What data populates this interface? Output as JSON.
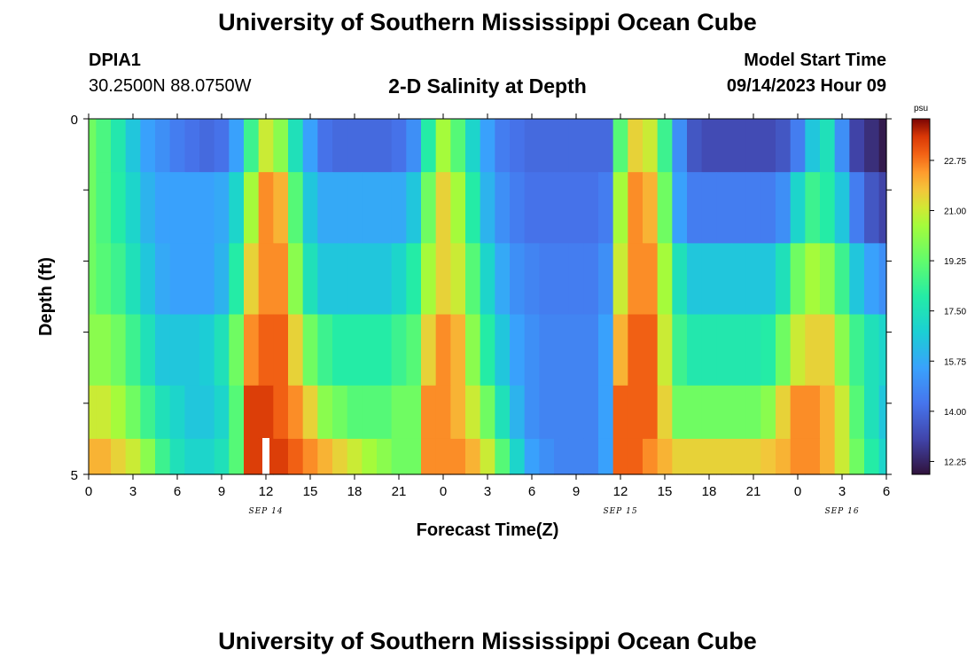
{
  "header": {
    "title": "University of Southern Mississippi Ocean Cube",
    "station_id": "DPIA1",
    "coords": "30.2500N  88.0750W",
    "subtitle": "2-D Salinity at Depth",
    "start_label": "Model Start Time",
    "start_value": "09/14/2023 Hour 09"
  },
  "footer": {
    "title": "University of Southern Mississippi Ocean Cube"
  },
  "chart_data": {
    "type": "heatmap",
    "title": "2-D Salinity at Depth",
    "xlabel": "Forecast Time(Z)",
    "ylabel": "Depth (ft)",
    "x_range_hours": [
      0,
      54
    ],
    "y_range_ft": [
      0,
      5
    ],
    "y_tick_labels": [
      {
        "v": 0,
        "label": "0"
      },
      {
        "v": 5,
        "label": "5"
      }
    ],
    "x_tick_labels": [
      {
        "h": 0,
        "label": "0"
      },
      {
        "h": 3,
        "label": "3"
      },
      {
        "h": 6,
        "label": "6"
      },
      {
        "h": 9,
        "label": "9"
      },
      {
        "h": 12,
        "label": "12"
      },
      {
        "h": 15,
        "label": "15"
      },
      {
        "h": 18,
        "label": "18"
      },
      {
        "h": 21,
        "label": "21"
      },
      {
        "h": 24,
        "label": "0"
      },
      {
        "h": 27,
        "label": "3"
      },
      {
        "h": 30,
        "label": "6"
      },
      {
        "h": 33,
        "label": "9"
      },
      {
        "h": 36,
        "label": "12"
      },
      {
        "h": 39,
        "label": "15"
      },
      {
        "h": 42,
        "label": "18"
      },
      {
        "h": 45,
        "label": "21"
      },
      {
        "h": 48,
        "label": "0"
      },
      {
        "h": 51,
        "label": "3"
      },
      {
        "h": 54,
        "label": "6"
      }
    ],
    "day_labels": [
      {
        "h": 12,
        "label": "SEP 14"
      },
      {
        "h": 36,
        "label": "SEP 15"
      },
      {
        "h": 51,
        "label": "SEP 16"
      }
    ],
    "now_marker_hour": 12,
    "depth_levels_ft": [
      0.25,
      1.25,
      2.25,
      3.25,
      4.25,
      4.75
    ],
    "colorbar": {
      "units": "psu",
      "min": 11.8,
      "max": 24.2,
      "ticks": [
        "22.75",
        "21.00",
        "19.25",
        "17.50",
        "15.75",
        "14.00",
        "12.25"
      ]
    },
    "salinity_psu": [
      [
        19.5,
        18.8,
        17.8,
        16.5,
        15.5,
        15.0,
        14.5,
        14.2,
        14.0,
        14.2,
        15.5,
        18.5,
        21.0,
        20.0,
        17.5,
        15.5,
        14.2,
        14.0,
        14.0,
        14.0,
        14.0,
        14.2,
        15.0,
        18.0,
        20.5,
        19.0,
        17.0,
        15.5,
        14.5,
        14.2,
        14.0,
        14.0,
        14.0,
        14.0,
        14.0,
        14.0,
        19.0,
        21.5,
        21.0,
        18.5,
        15.0,
        13.5,
        13.2,
        13.2,
        13.2,
        13.2,
        13.2,
        13.5,
        14.5,
        16.5,
        17.5,
        15.0,
        13.0,
        12.5,
        12.0
      ],
      [
        19.5,
        18.8,
        18.0,
        17.0,
        16.0,
        15.5,
        15.5,
        15.5,
        15.5,
        15.7,
        17.0,
        20.5,
        22.5,
        22.0,
        19.0,
        16.5,
        15.7,
        15.7,
        15.7,
        15.7,
        15.7,
        15.7,
        16.5,
        19.5,
        21.5,
        20.5,
        18.0,
        16.0,
        15.0,
        14.5,
        14.2,
        14.2,
        14.2,
        14.2,
        14.2,
        14.5,
        20.5,
        22.5,
        22.0,
        19.5,
        15.5,
        14.5,
        14.5,
        14.5,
        14.5,
        14.5,
        14.5,
        15.0,
        17.0,
        18.5,
        18.0,
        16.5,
        14.5,
        13.5,
        13.0
      ],
      [
        19.5,
        19.0,
        18.5,
        17.5,
        16.5,
        15.7,
        15.5,
        15.5,
        15.5,
        16.0,
        18.0,
        21.5,
        22.5,
        22.5,
        20.0,
        17.5,
        16.5,
        16.5,
        16.5,
        16.5,
        16.5,
        17.0,
        18.0,
        20.5,
        21.5,
        21.0,
        19.0,
        17.0,
        15.7,
        15.0,
        14.7,
        14.5,
        14.5,
        14.5,
        14.5,
        15.0,
        21.0,
        22.5,
        22.5,
        20.5,
        17.5,
        16.5,
        16.5,
        16.5,
        16.5,
        16.5,
        16.5,
        17.5,
        19.5,
        20.5,
        20.0,
        18.5,
        16.5,
        15.5,
        15.0
      ],
      [
        20.0,
        20.0,
        19.5,
        18.5,
        17.5,
        16.5,
        16.5,
        16.5,
        16.7,
        17.5,
        19.5,
        22.5,
        23.0,
        23.0,
        21.5,
        19.5,
        18.5,
        18.0,
        18.0,
        18.0,
        18.0,
        18.5,
        19.0,
        21.5,
        22.5,
        22.0,
        20.0,
        18.0,
        16.5,
        15.5,
        15.0,
        14.7,
        14.7,
        14.7,
        14.7,
        15.5,
        22.0,
        23.0,
        23.0,
        21.0,
        18.5,
        17.8,
        17.8,
        17.8,
        17.8,
        17.8,
        18.0,
        19.5,
        21.0,
        21.5,
        21.5,
        20.0,
        18.5,
        17.5,
        17.0
      ],
      [
        21.0,
        21.0,
        20.5,
        19.5,
        18.5,
        17.5,
        17.0,
        16.5,
        16.5,
        17.0,
        19.0,
        23.5,
        23.5,
        23.0,
        22.5,
        21.5,
        20.0,
        19.5,
        19.0,
        19.0,
        19.0,
        19.5,
        19.5,
        22.5,
        22.5,
        22.0,
        21.0,
        19.5,
        17.5,
        16.0,
        15.0,
        14.7,
        14.7,
        14.7,
        14.7,
        15.5,
        23.0,
        23.0,
        23.0,
        21.5,
        19.5,
        19.5,
        19.5,
        19.5,
        19.5,
        19.5,
        20.0,
        21.5,
        22.5,
        22.5,
        22.0,
        21.0,
        19.0,
        17.5,
        16.5
      ],
      [
        22.0,
        22.0,
        21.5,
        21.0,
        20.0,
        18.5,
        17.5,
        17.0,
        17.0,
        17.5,
        19.0,
        23.5,
        23.5,
        23.5,
        23.0,
        22.5,
        22.0,
        21.5,
        21.0,
        20.5,
        20.0,
        19.5,
        19.5,
        22.5,
        22.5,
        22.5,
        22.0,
        21.0,
        19.0,
        17.0,
        15.5,
        15.0,
        14.7,
        14.7,
        14.7,
        15.5,
        23.0,
        23.0,
        22.5,
        22.0,
        21.5,
        21.5,
        21.5,
        21.5,
        21.5,
        21.5,
        21.7,
        22.0,
        22.5,
        22.5,
        22.0,
        21.0,
        19.5,
        18.0,
        17.0
      ]
    ]
  }
}
